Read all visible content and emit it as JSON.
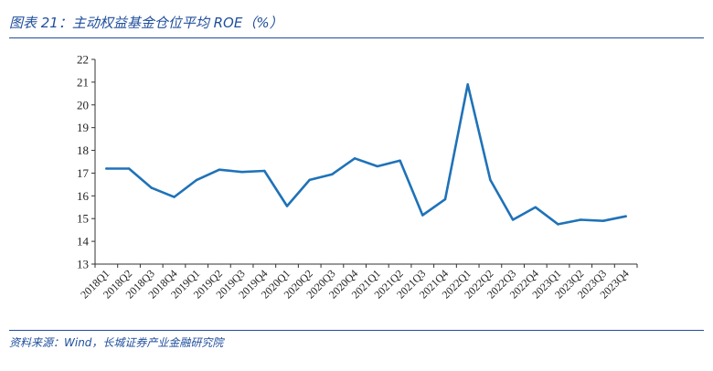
{
  "header": {
    "title": "图表 21：主动权益基金仓位平均 ROE（%）"
  },
  "footer": {
    "source": "资料来源：Wind，长城证券产业金融研究院"
  },
  "chart_data": {
    "type": "line",
    "title": "",
    "xlabel": "",
    "ylabel": "",
    "ylim": [
      13,
      22
    ],
    "yticks": [
      13,
      14,
      15,
      16,
      17,
      18,
      19,
      20,
      21,
      22
    ],
    "grid": false,
    "legend": "none",
    "categories": [
      "2018Q1",
      "2018Q2",
      "2018Q3",
      "2018Q4",
      "2019Q1",
      "2019Q2",
      "2019Q3",
      "2019Q4",
      "2020Q1",
      "2020Q2",
      "2020Q3",
      "2020Q4",
      "2021Q1",
      "2021Q2",
      "2021Q3",
      "2021Q4",
      "2022Q1",
      "2022Q2",
      "2022Q3",
      "2022Q4",
      "2023Q1",
      "2023Q2",
      "2023Q3",
      "2023Q4"
    ],
    "series": [
      {
        "name": "",
        "color": "#1f72b8",
        "values": [
          17.2,
          17.2,
          16.35,
          15.95,
          16.7,
          17.15,
          17.05,
          17.1,
          15.55,
          16.7,
          16.95,
          17.65,
          17.3,
          17.55,
          15.15,
          15.85,
          20.9,
          16.7,
          14.95,
          15.5,
          14.75,
          14.95,
          14.9,
          15.1
        ]
      }
    ]
  }
}
